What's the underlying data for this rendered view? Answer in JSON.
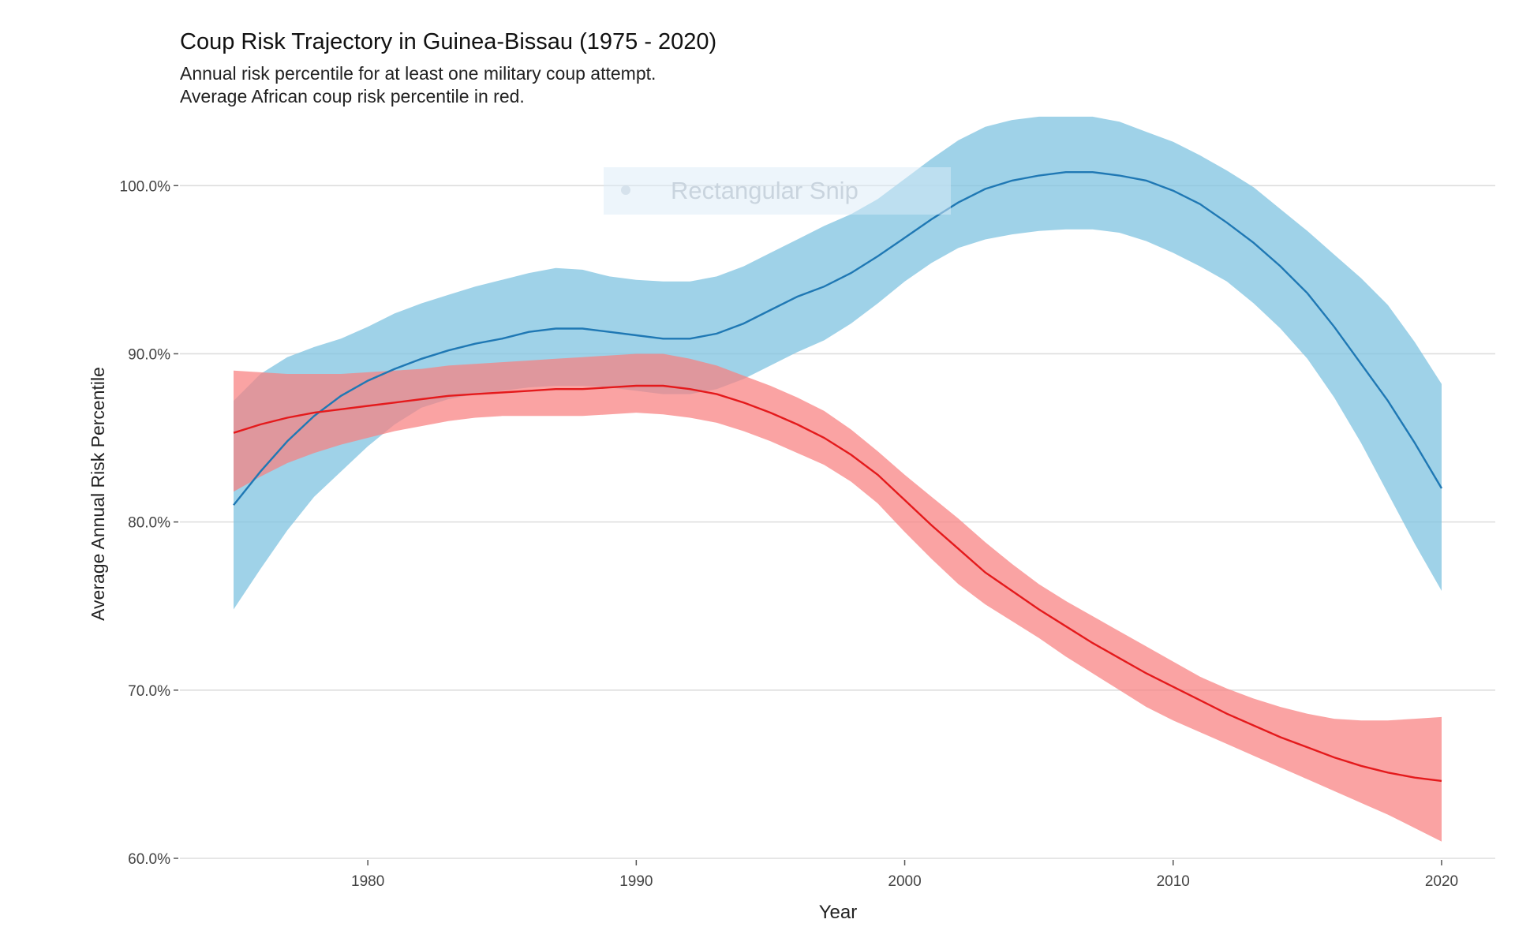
{
  "chart_data": {
    "type": "area",
    "title": "Coup Risk Trajectory in Guinea-Bissau (1975 - 2020)",
    "subtitle_lines": [
      "Annual risk percentile for at least one military coup attempt.",
      "Average African coup risk percentile in red."
    ],
    "xlabel": "Year",
    "ylabel": "Average Annual Risk Percentile",
    "xlim": [
      1973,
      2022
    ],
    "ylim": [
      60,
      104
    ],
    "x_ticks": [
      1980,
      1990,
      2000,
      2010,
      2020
    ],
    "x_tick_labels": [
      "1980",
      "1990",
      "2000",
      "2010",
      "2020"
    ],
    "y_ticks": [
      60,
      70,
      80,
      90,
      100
    ],
    "y_tick_labels": [
      "60.0%",
      "70.0%",
      "80.0%",
      "90.0%",
      "100.0%"
    ],
    "x": [
      1975,
      1976,
      1977,
      1978,
      1979,
      1980,
      1981,
      1982,
      1983,
      1984,
      1985,
      1986,
      1987,
      1988,
      1989,
      1990,
      1991,
      1992,
      1993,
      1994,
      1995,
      1996,
      1997,
      1998,
      1999,
      2000,
      2001,
      2002,
      2003,
      2004,
      2005,
      2006,
      2007,
      2008,
      2009,
      2010,
      2011,
      2012,
      2013,
      2014,
      2015,
      2016,
      2017,
      2018,
      2019,
      2020
    ],
    "series": [
      {
        "name": "Guinea-Bissau",
        "color": "#1f78b4",
        "ribbon_color": "#7fc3e0",
        "values": [
          81.0,
          83.0,
          84.8,
          86.3,
          87.5,
          88.4,
          89.1,
          89.7,
          90.2,
          90.6,
          90.9,
          91.3,
          91.5,
          91.5,
          91.3,
          91.1,
          90.9,
          90.9,
          91.2,
          91.8,
          92.6,
          93.4,
          94.0,
          94.8,
          95.8,
          96.9,
          98.0,
          99.0,
          99.8,
          100.3,
          100.6,
          100.8,
          100.8,
          100.6,
          100.3,
          99.7,
          98.9,
          97.8,
          96.6,
          95.2,
          93.6,
          91.6,
          89.4,
          87.2,
          84.7,
          82.0
        ],
        "lower": [
          74.8,
          77.2,
          79.5,
          81.5,
          83.0,
          84.5,
          85.8,
          86.8,
          87.3,
          87.6,
          87.8,
          88.0,
          88.1,
          88.1,
          88.0,
          87.8,
          87.6,
          87.6,
          87.9,
          88.5,
          89.3,
          90.1,
          90.8,
          91.8,
          93.0,
          94.3,
          95.4,
          96.3,
          96.8,
          97.1,
          97.3,
          97.4,
          97.4,
          97.2,
          96.7,
          96.0,
          95.2,
          94.3,
          93.0,
          91.5,
          89.7,
          87.4,
          84.7,
          81.7,
          78.7,
          75.9
        ],
        "upper": [
          87.2,
          88.8,
          89.8,
          90.4,
          90.9,
          91.6,
          92.4,
          93.0,
          93.5,
          94.0,
          94.4,
          94.8,
          95.1,
          95.0,
          94.6,
          94.4,
          94.3,
          94.3,
          94.6,
          95.2,
          96.0,
          96.8,
          97.6,
          98.3,
          99.2,
          100.4,
          101.6,
          102.7,
          103.5,
          103.9,
          104.1,
          104.1,
          104.1,
          103.8,
          103.2,
          102.6,
          101.8,
          100.9,
          99.9,
          98.6,
          97.3,
          95.9,
          94.5,
          92.9,
          90.7,
          88.2
        ]
      },
      {
        "name": "African average",
        "color": "#e41a1c",
        "ribbon_color": "#f88080",
        "values": [
          85.3,
          85.8,
          86.2,
          86.5,
          86.7,
          86.9,
          87.1,
          87.3,
          87.5,
          87.6,
          87.7,
          87.8,
          87.9,
          87.9,
          88.0,
          88.1,
          88.1,
          87.9,
          87.6,
          87.1,
          86.5,
          85.8,
          85.0,
          84.0,
          82.8,
          81.3,
          79.8,
          78.4,
          77.0,
          75.9,
          74.8,
          73.8,
          72.8,
          71.9,
          71.0,
          70.2,
          69.4,
          68.6,
          67.9,
          67.2,
          66.6,
          66.0,
          65.5,
          65.1,
          64.8,
          64.6
        ],
        "lower": [
          81.8,
          82.7,
          83.5,
          84.1,
          84.6,
          85.0,
          85.4,
          85.7,
          86.0,
          86.2,
          86.3,
          86.3,
          86.3,
          86.3,
          86.4,
          86.5,
          86.4,
          86.2,
          85.9,
          85.4,
          84.8,
          84.1,
          83.4,
          82.4,
          81.1,
          79.4,
          77.8,
          76.3,
          75.1,
          74.1,
          73.1,
          72.0,
          71.0,
          70.0,
          69.0,
          68.2,
          67.5,
          66.8,
          66.1,
          65.4,
          64.7,
          64.0,
          63.3,
          62.6,
          61.8,
          61.0
        ],
        "upper": [
          89.0,
          88.9,
          88.8,
          88.8,
          88.8,
          88.9,
          89.0,
          89.1,
          89.3,
          89.4,
          89.5,
          89.6,
          89.7,
          89.8,
          89.9,
          90.0,
          90.0,
          89.7,
          89.3,
          88.7,
          88.1,
          87.4,
          86.6,
          85.5,
          84.2,
          82.8,
          81.5,
          80.2,
          78.8,
          77.5,
          76.3,
          75.3,
          74.4,
          73.5,
          72.6,
          71.7,
          70.8,
          70.1,
          69.5,
          69.0,
          68.6,
          68.3,
          68.2,
          68.2,
          68.3,
          68.4
        ]
      }
    ],
    "grid": true,
    "legend": "none"
  },
  "overlay": {
    "label": "Rectangular Snip",
    "color": "#dcecf8"
  }
}
